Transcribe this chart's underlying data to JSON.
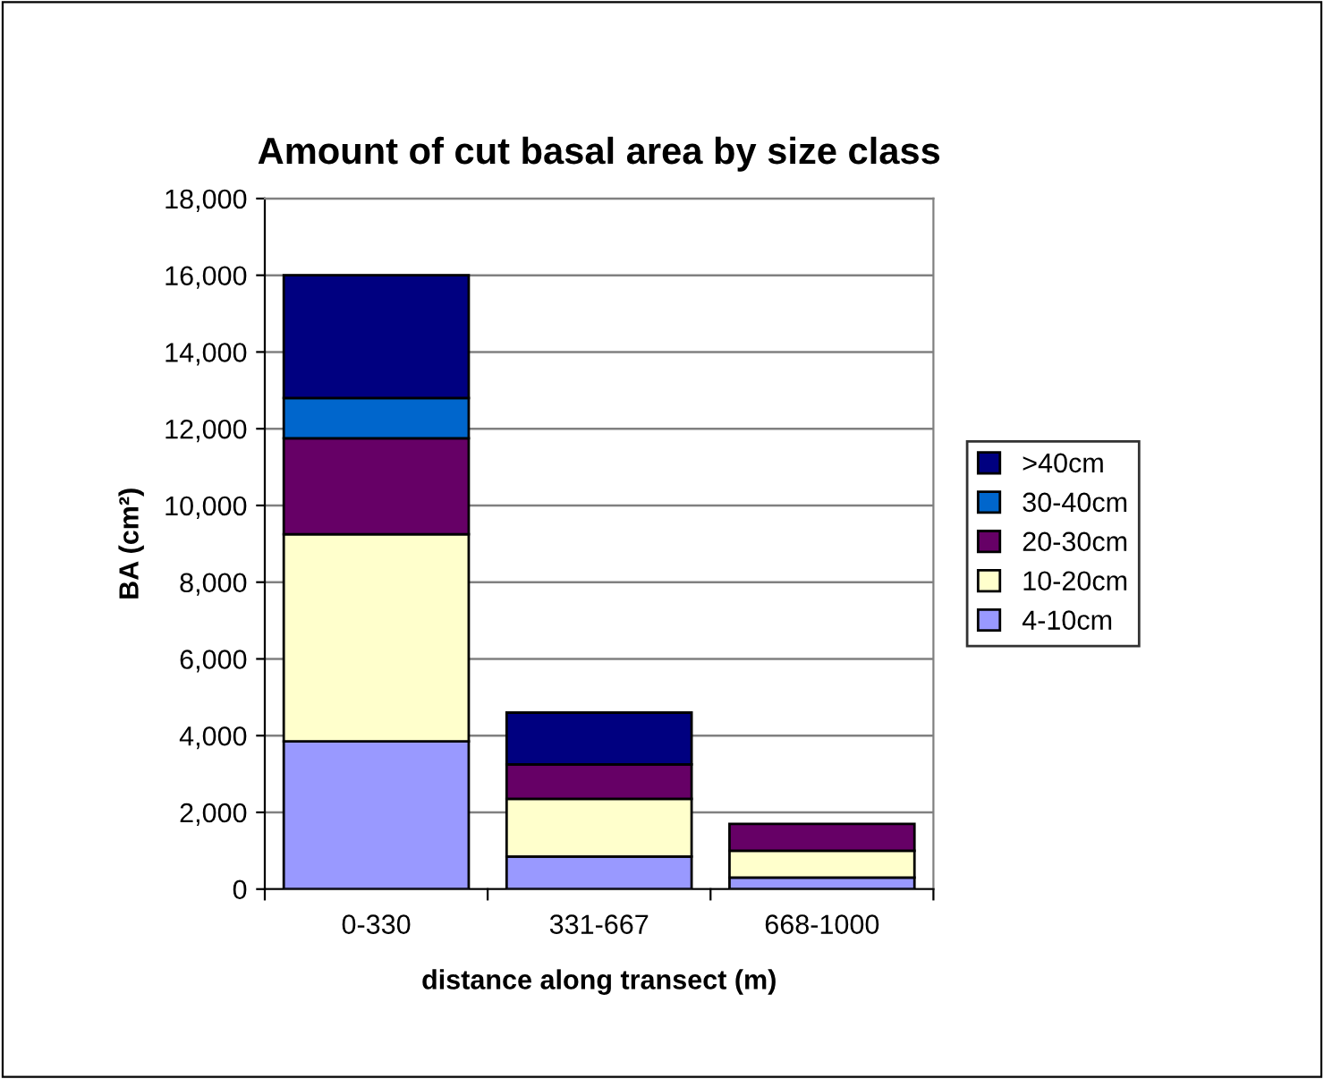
{
  "chart_data": {
    "type": "bar",
    "stacked": true,
    "title": "Amount of cut basal area by size class",
    "xlabel": "distance along transect (m)",
    "ylabel": "BA (cm²)",
    "categories": [
      "0-330",
      "331-667",
      "668-1000"
    ],
    "series": [
      {
        "name": "4-10cm",
        "color": "#9999ff",
        "values": [
          3850,
          850,
          300
        ]
      },
      {
        "name": "10-20cm",
        "color": "#ffffcc",
        "values": [
          5400,
          1500,
          700
        ]
      },
      {
        "name": "20-30cm",
        "color": "#660066",
        "values": [
          2500,
          900,
          700
        ]
      },
      {
        "name": "30-40cm",
        "color": "#0066cc",
        "values": [
          1050,
          null,
          null
        ]
      },
      {
        "name": ">40cm",
        "color": "#000080",
        "values": [
          3200,
          1350,
          null
        ]
      }
    ],
    "ylim": [
      0,
      18000
    ],
    "yticks": [
      {
        "value": 0,
        "label": "0"
      },
      {
        "value": 2000,
        "label": "2,000"
      },
      {
        "value": 4000,
        "label": "4,000"
      },
      {
        "value": 6000,
        "label": "6,000"
      },
      {
        "value": 8000,
        "label": "8,000"
      },
      {
        "value": 10000,
        "label": "10,000"
      },
      {
        "value": 12000,
        "label": "12,000"
      },
      {
        "value": 14000,
        "label": "14,000"
      },
      {
        "value": 16000,
        "label": "16,000"
      },
      {
        "value": 18000,
        "label": "18,000"
      }
    ],
    "grid": "y",
    "legend": "right"
  }
}
